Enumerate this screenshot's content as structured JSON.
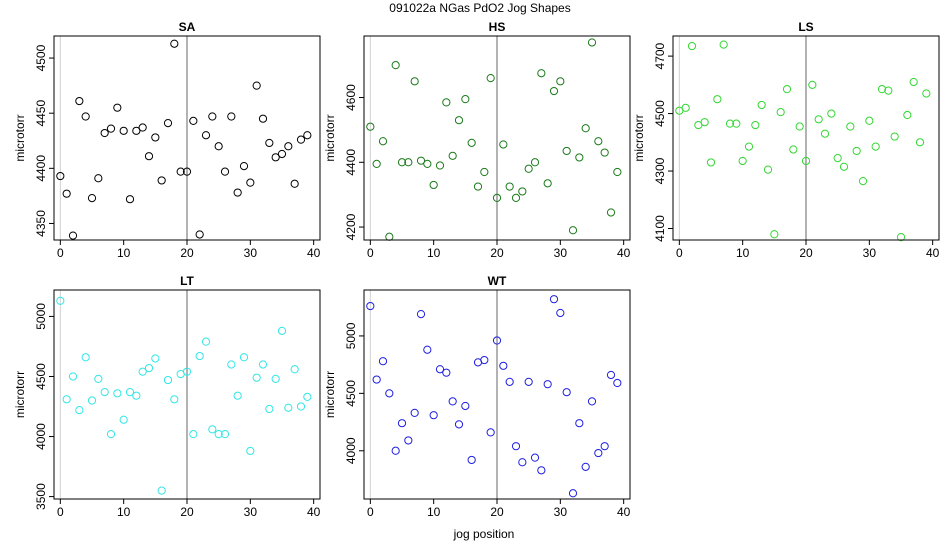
{
  "figure": {
    "title": "091022a   NGas PdO2 Jog Shapes",
    "xlabel": "jog position"
  },
  "chart_data": [
    {
      "type": "scatter",
      "title": "SA",
      "ylabel": "microtorr",
      "color": "#000000",
      "xlim": [
        -1,
        41
      ],
      "ylim": [
        4335,
        4520
      ],
      "xticks": [
        0,
        10,
        20,
        30,
        40
      ],
      "yticks": [
        4350,
        4400,
        4450,
        4500
      ],
      "vline": 20,
      "x": [
        0,
        1,
        2,
        3,
        4,
        5,
        6,
        7,
        8,
        9,
        10,
        11,
        12,
        13,
        14,
        15,
        16,
        17,
        18,
        19,
        20,
        21,
        22,
        23,
        24,
        25,
        26,
        27,
        28,
        29,
        30,
        31,
        32,
        33,
        34,
        35,
        36,
        37,
        38,
        39
      ],
      "y": [
        4393,
        4377,
        4339,
        4461,
        4447,
        4373,
        4391,
        4432,
        4436,
        4455,
        4434,
        4372,
        4434,
        4437,
        4411,
        4428,
        4389,
        4441,
        4513,
        4397,
        4397,
        4443,
        4340,
        4430,
        4447,
        4420,
        4397,
        4447,
        4378,
        4402,
        4387,
        4475,
        4445,
        4423,
        4410,
        4413,
        4420,
        4386,
        4426,
        4430
      ]
    },
    {
      "type": "scatter",
      "title": "HS",
      "ylabel": "microtorr",
      "color": "#1b7a1b",
      "xlim": [
        -1,
        41
      ],
      "ylim": [
        4160,
        4790
      ],
      "xticks": [
        0,
        10,
        20,
        30,
        40
      ],
      "yticks": [
        4200,
        4400,
        4600
      ],
      "vline": 20,
      "x": [
        0,
        1,
        2,
        3,
        4,
        5,
        6,
        7,
        8,
        9,
        10,
        11,
        12,
        13,
        14,
        15,
        16,
        17,
        18,
        19,
        20,
        21,
        22,
        23,
        24,
        25,
        26,
        27,
        28,
        29,
        30,
        31,
        32,
        33,
        34,
        35,
        36,
        37,
        38,
        39
      ],
      "y": [
        4510,
        4395,
        4465,
        4170,
        4700,
        4400,
        4400,
        4650,
        4405,
        4395,
        4330,
        4390,
        4585,
        4420,
        4530,
        4595,
        4460,
        4325,
        4370,
        4660,
        4290,
        4455,
        4325,
        4290,
        4310,
        4380,
        4400,
        4675,
        4335,
        4620,
        4650,
        4435,
        4190,
        4415,
        4505,
        4770,
        4465,
        4430,
        4245,
        4370
      ]
    },
    {
      "type": "scatter",
      "title": "LS",
      "ylabel": "microtorr",
      "color": "#33d633",
      "xlim": [
        -1,
        41
      ],
      "ylim": [
        4060,
        4770
      ],
      "xticks": [
        0,
        10,
        20,
        30,
        40
      ],
      "yticks": [
        4100,
        4300,
        4500,
        4700
      ],
      "vline": 20,
      "x": [
        0,
        1,
        2,
        3,
        4,
        5,
        6,
        7,
        8,
        9,
        10,
        11,
        12,
        13,
        14,
        15,
        16,
        17,
        18,
        19,
        20,
        21,
        22,
        23,
        24,
        25,
        26,
        27,
        28,
        29,
        30,
        31,
        32,
        33,
        34,
        35,
        36,
        37,
        38,
        39
      ],
      "y": [
        4510,
        4520,
        4735,
        4460,
        4470,
        4330,
        4550,
        4740,
        4465,
        4465,
        4335,
        4385,
        4460,
        4530,
        4305,
        4080,
        4505,
        4585,
        4375,
        4455,
        4335,
        4600,
        4480,
        4430,
        4500,
        4345,
        4315,
        4455,
        4370,
        4265,
        4475,
        4385,
        4585,
        4580,
        4420,
        4070,
        4495,
        4610,
        4400,
        4570
      ]
    },
    {
      "type": "scatter",
      "title": "LT",
      "ylabel": "microtorr",
      "color": "#33e6e6",
      "xlim": [
        -1,
        41
      ],
      "ylim": [
        3480,
        5220
      ],
      "xticks": [
        0,
        10,
        20,
        30,
        40
      ],
      "yticks": [
        3500,
        4000,
        4500,
        5000
      ],
      "vline": 20,
      "x": [
        0,
        1,
        2,
        3,
        4,
        5,
        6,
        7,
        8,
        9,
        10,
        11,
        12,
        13,
        14,
        15,
        16,
        17,
        18,
        19,
        20,
        21,
        22,
        23,
        24,
        25,
        26,
        27,
        28,
        29,
        30,
        31,
        32,
        33,
        34,
        35,
        36,
        37,
        38,
        39
      ],
      "y": [
        5130,
        4310,
        4500,
        4220,
        4660,
        4300,
        4480,
        4370,
        4020,
        4360,
        4140,
        4370,
        4340,
        4540,
        4570,
        4650,
        3550,
        4470,
        4310,
        4520,
        4540,
        4020,
        4670,
        4790,
        4060,
        4020,
        4020,
        4600,
        4340,
        4660,
        3880,
        4490,
        4600,
        4230,
        4480,
        4880,
        4240,
        4560,
        4250,
        4330
      ]
    },
    {
      "type": "scatter",
      "title": "WT",
      "ylabel": "microtorr",
      "color": "#1f1fe0",
      "xlim": [
        -1,
        41
      ],
      "ylim": [
        3580,
        5400
      ],
      "xticks": [
        0,
        10,
        20,
        30,
        40
      ],
      "yticks": [
        4000,
        4500,
        5000
      ],
      "vline": 20,
      "x": [
        0,
        1,
        2,
        3,
        4,
        5,
        6,
        7,
        8,
        9,
        10,
        11,
        12,
        13,
        14,
        15,
        16,
        17,
        18,
        19,
        20,
        21,
        22,
        23,
        24,
        25,
        26,
        27,
        28,
        29,
        30,
        31,
        32,
        33,
        34,
        35,
        36,
        37,
        38,
        39
      ],
      "y": [
        5260,
        4620,
        4780,
        4500,
        4000,
        4240,
        4090,
        4330,
        5190,
        4880,
        4310,
        4710,
        4680,
        4430,
        4230,
        4390,
        3920,
        4770,
        4790,
        4160,
        4960,
        4740,
        4600,
        4040,
        3900,
        4600,
        3940,
        3830,
        4580,
        5320,
        5200,
        4510,
        3630,
        4240,
        3860,
        4430,
        3980,
        4040,
        4660,
        4590
      ]
    }
  ]
}
